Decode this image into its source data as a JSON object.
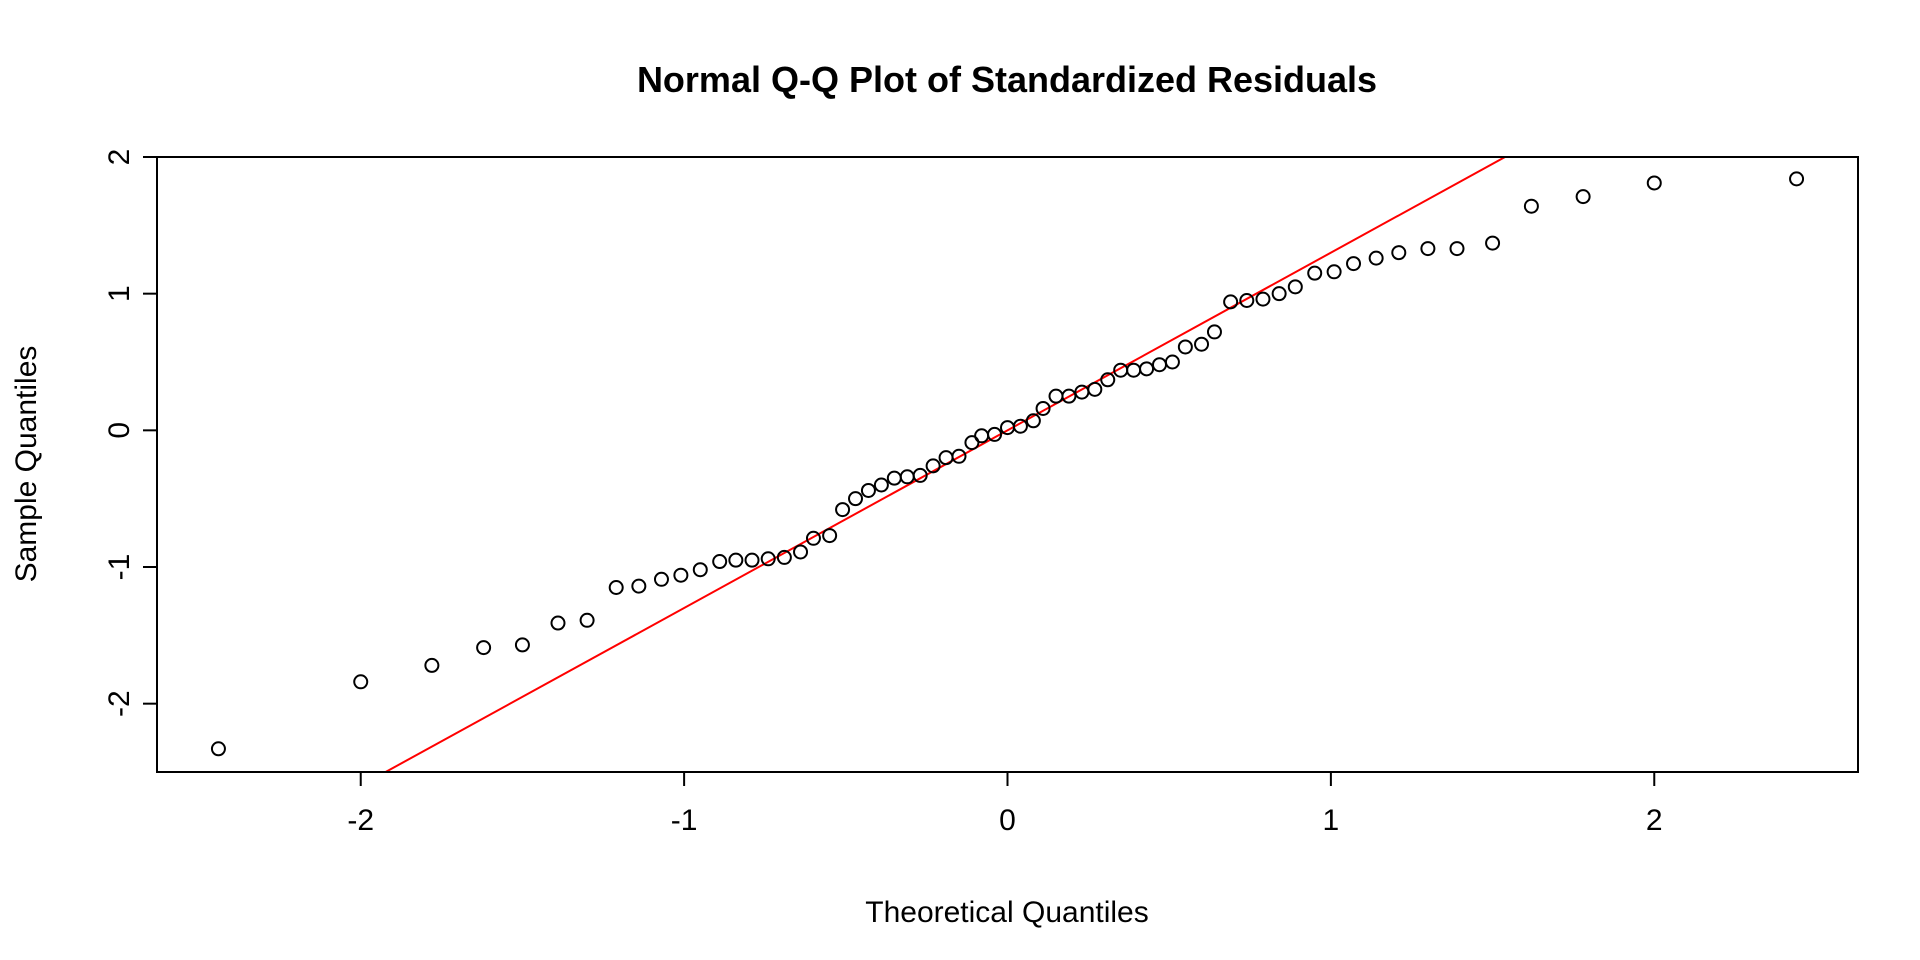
{
  "chart_data": {
    "type": "scatter",
    "title": "Normal Q-Q Plot of Standardized Residuals",
    "xlabel": "Theoretical Quantiles",
    "ylabel": "Sample Quantiles",
    "xlim": [
      -2.63,
      2.63
    ],
    "ylim": [
      -2.5,
      2.0
    ],
    "x_ticks": [
      -2,
      -1,
      0,
      1,
      2
    ],
    "y_ticks": [
      -2,
      -1,
      0,
      1,
      2
    ],
    "grid": false,
    "legend": "none",
    "colors": {
      "points": "#000000",
      "reference_line": "#ff0000",
      "frame": "#000000"
    },
    "reference_line": {
      "intercept": 0.0,
      "slope": 1.3
    },
    "points": [
      {
        "x": -2.44,
        "y": -2.33
      },
      {
        "x": -2.0,
        "y": -1.84
      },
      {
        "x": -1.78,
        "y": -1.72
      },
      {
        "x": -1.62,
        "y": -1.59
      },
      {
        "x": -1.5,
        "y": -1.57
      },
      {
        "x": -1.39,
        "y": -1.41
      },
      {
        "x": -1.3,
        "y": -1.39
      },
      {
        "x": -1.21,
        "y": -1.15
      },
      {
        "x": -1.14,
        "y": -1.14
      },
      {
        "x": -1.07,
        "y": -1.09
      },
      {
        "x": -1.01,
        "y": -1.06
      },
      {
        "x": -0.95,
        "y": -1.02
      },
      {
        "x": -0.89,
        "y": -0.96
      },
      {
        "x": -0.84,
        "y": -0.95
      },
      {
        "x": -0.79,
        "y": -0.95
      },
      {
        "x": -0.74,
        "y": -0.94
      },
      {
        "x": -0.69,
        "y": -0.93
      },
      {
        "x": -0.64,
        "y": -0.89
      },
      {
        "x": -0.6,
        "y": -0.79
      },
      {
        "x": -0.55,
        "y": -0.77
      },
      {
        "x": -0.51,
        "y": -0.58
      },
      {
        "x": -0.47,
        "y": -0.5
      },
      {
        "x": -0.43,
        "y": -0.44
      },
      {
        "x": -0.39,
        "y": -0.4
      },
      {
        "x": -0.35,
        "y": -0.35
      },
      {
        "x": -0.31,
        "y": -0.34
      },
      {
        "x": -0.27,
        "y": -0.33
      },
      {
        "x": -0.23,
        "y": -0.26
      },
      {
        "x": -0.19,
        "y": -0.2
      },
      {
        "x": -0.15,
        "y": -0.19
      },
      {
        "x": -0.11,
        "y": -0.09
      },
      {
        "x": -0.08,
        "y": -0.04
      },
      {
        "x": -0.04,
        "y": -0.03
      },
      {
        "x": 0.0,
        "y": 0.02
      },
      {
        "x": 0.04,
        "y": 0.03
      },
      {
        "x": 0.08,
        "y": 0.07
      },
      {
        "x": 0.11,
        "y": 0.16
      },
      {
        "x": 0.15,
        "y": 0.25
      },
      {
        "x": 0.19,
        "y": 0.25
      },
      {
        "x": 0.23,
        "y": 0.28
      },
      {
        "x": 0.27,
        "y": 0.3
      },
      {
        "x": 0.31,
        "y": 0.37
      },
      {
        "x": 0.35,
        "y": 0.44
      },
      {
        "x": 0.39,
        "y": 0.44
      },
      {
        "x": 0.43,
        "y": 0.45
      },
      {
        "x": 0.47,
        "y": 0.48
      },
      {
        "x": 0.51,
        "y": 0.5
      },
      {
        "x": 0.55,
        "y": 0.61
      },
      {
        "x": 0.6,
        "y": 0.63
      },
      {
        "x": 0.64,
        "y": 0.72
      },
      {
        "x": 0.69,
        "y": 0.94
      },
      {
        "x": 0.74,
        "y": 0.95
      },
      {
        "x": 0.79,
        "y": 0.96
      },
      {
        "x": 0.84,
        "y": 1.0
      },
      {
        "x": 0.89,
        "y": 1.05
      },
      {
        "x": 0.95,
        "y": 1.15
      },
      {
        "x": 1.01,
        "y": 1.16
      },
      {
        "x": 1.07,
        "y": 1.22
      },
      {
        "x": 1.14,
        "y": 1.26
      },
      {
        "x": 1.21,
        "y": 1.3
      },
      {
        "x": 1.3,
        "y": 1.33
      },
      {
        "x": 1.39,
        "y": 1.33
      },
      {
        "x": 1.5,
        "y": 1.37
      },
      {
        "x": 1.62,
        "y": 1.64
      },
      {
        "x": 1.78,
        "y": 1.71
      },
      {
        "x": 2.0,
        "y": 1.81
      },
      {
        "x": 2.44,
        "y": 1.84
      }
    ]
  }
}
